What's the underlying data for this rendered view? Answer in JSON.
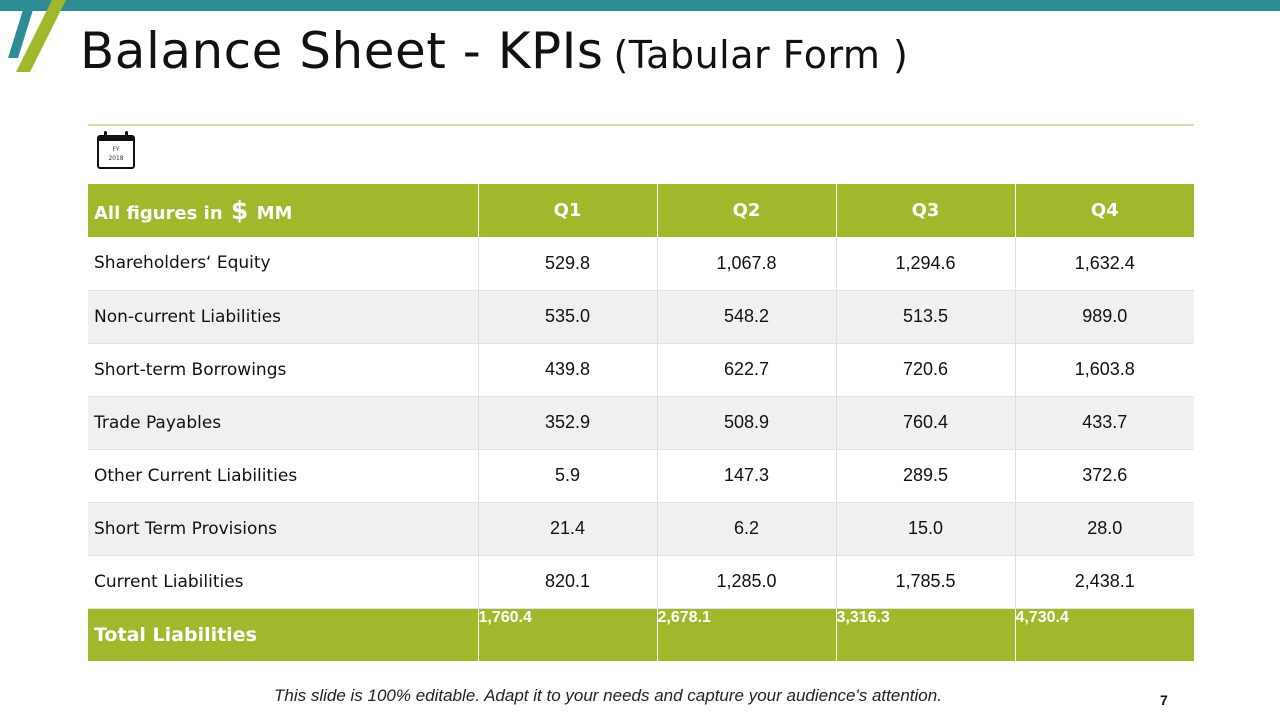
{
  "slide": {
    "title": "Balance Sheet - KPIs",
    "subtitle": "(Tabular Form )",
    "calendar_icon": {
      "icon": "calendar-icon",
      "line1": "FY",
      "line2": "2018"
    },
    "footer": "This slide is 100% editable. Adapt it to your needs and capture your audience's attention.",
    "page_number": "7"
  },
  "colors": {
    "accent_green": "#a0b92c",
    "accent_teal": "#2e8c94"
  },
  "table": {
    "header": {
      "label_prefix": "All figures in",
      "label_dollar": "$",
      "label_suffix": "MM",
      "quarters": [
        "Q1",
        "Q2",
        "Q3",
        "Q4"
      ]
    },
    "rows": [
      {
        "label": "Shareholders‘ Equity",
        "values": [
          "529.8",
          "1,067.8",
          "1,294.6",
          "1,632.4"
        ]
      },
      {
        "label": "Non-current Liabilities",
        "values": [
          "535.0",
          "548.2",
          "513.5",
          "989.0"
        ]
      },
      {
        "label": "Short-term Borrowings",
        "values": [
          "439.8",
          "622.7",
          "720.6",
          "1,603.8"
        ]
      },
      {
        "label": "Trade Payables",
        "values": [
          "352.9",
          "508.9",
          "760.4",
          "433.7"
        ]
      },
      {
        "label": "Other Current Liabilities",
        "values": [
          "5.9",
          "147.3",
          "289.5",
          "372.6"
        ]
      },
      {
        "label": "Short Term Provisions",
        "values": [
          "21.4",
          "6.2",
          "15.0",
          "28.0"
        ]
      },
      {
        "label": "Current Liabilities",
        "values": [
          "820.1",
          "1,285.0",
          "1,785.5",
          "2,438.1"
        ]
      }
    ],
    "total": {
      "label": "Total Liabilities",
      "values": [
        "1,760.4",
        "2,678.1",
        "3,316.3",
        "4,730.4"
      ]
    }
  }
}
